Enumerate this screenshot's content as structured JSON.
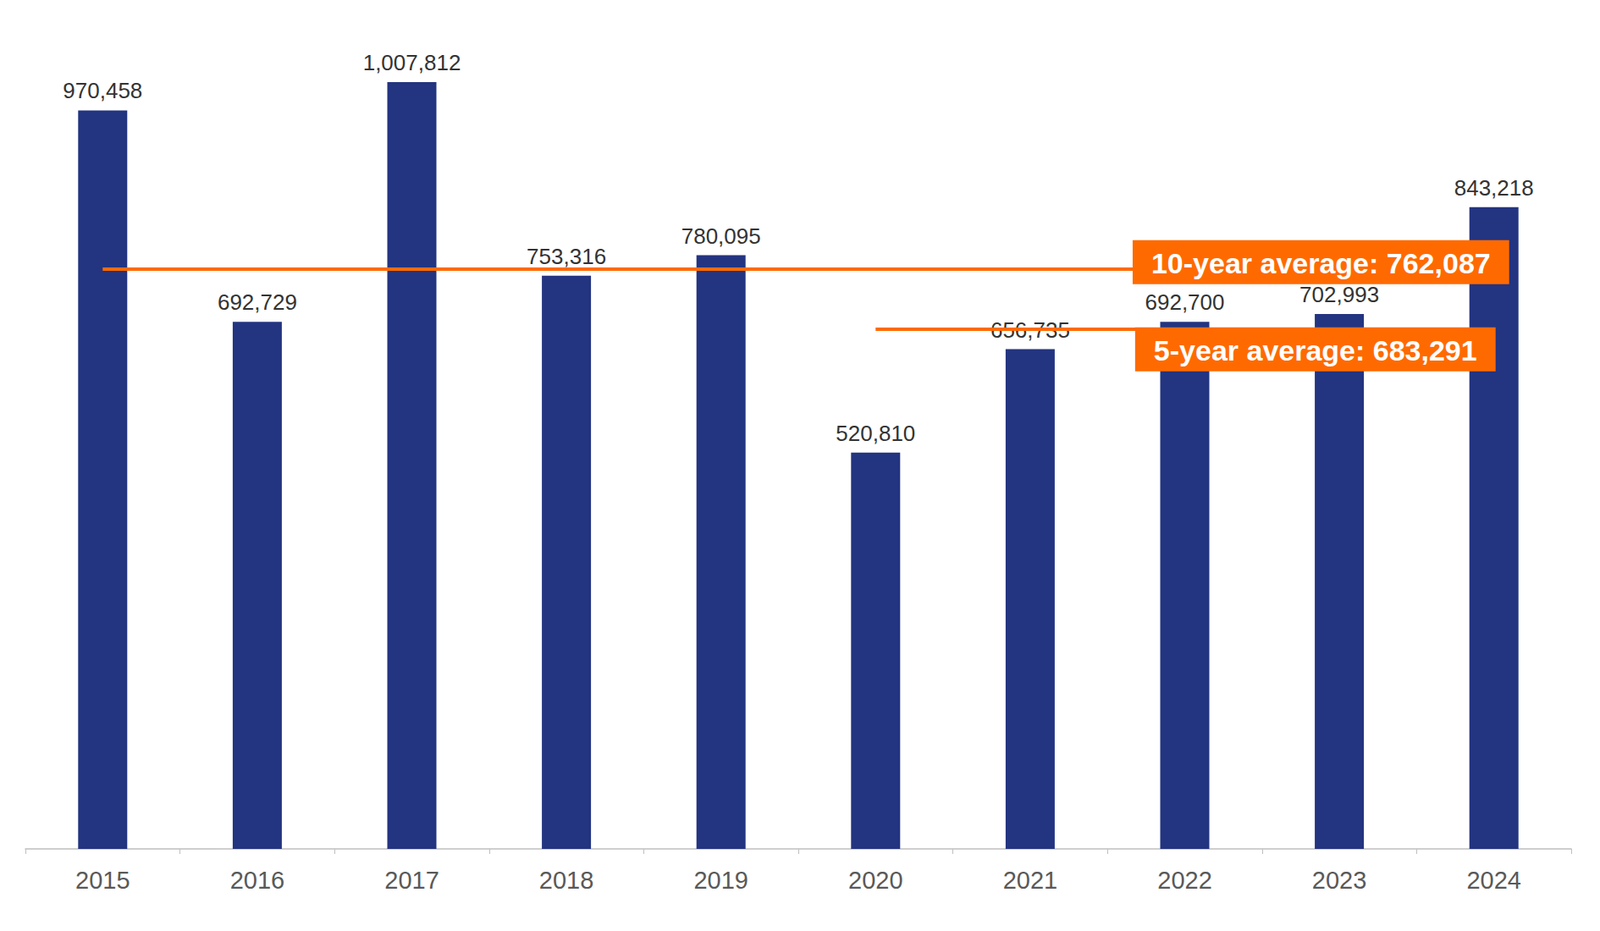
{
  "chart_data": {
    "type": "bar",
    "categories": [
      "2015",
      "2016",
      "2017",
      "2018",
      "2019",
      "2020",
      "2021",
      "2022",
      "2023",
      "2024"
    ],
    "values": [
      970458,
      692729,
      1007812,
      753316,
      780095,
      520810,
      656735,
      692700,
      702993,
      843218
    ],
    "value_labels": [
      "970,458",
      "692,729",
      "1,007,812",
      "753,316",
      "780,095",
      "520,810",
      "656,735",
      "692,700",
      "702,993",
      "843,218"
    ],
    "color": "#233480",
    "ylim": [
      0,
      1100000
    ],
    "yticks": [
      0,
      1100000
    ],
    "grid": false,
    "data_labels": true,
    "tick_labels": "x",
    "annotations": [
      {
        "text": "10-year average: 762,087",
        "value": 762087,
        "from": "2015",
        "to": "2024",
        "color": "#ff6a00"
      },
      {
        "text": "5-year average: 683,291",
        "value": 683291,
        "from": "2020",
        "to": "2024",
        "color": "#ff6a00"
      }
    ]
  }
}
